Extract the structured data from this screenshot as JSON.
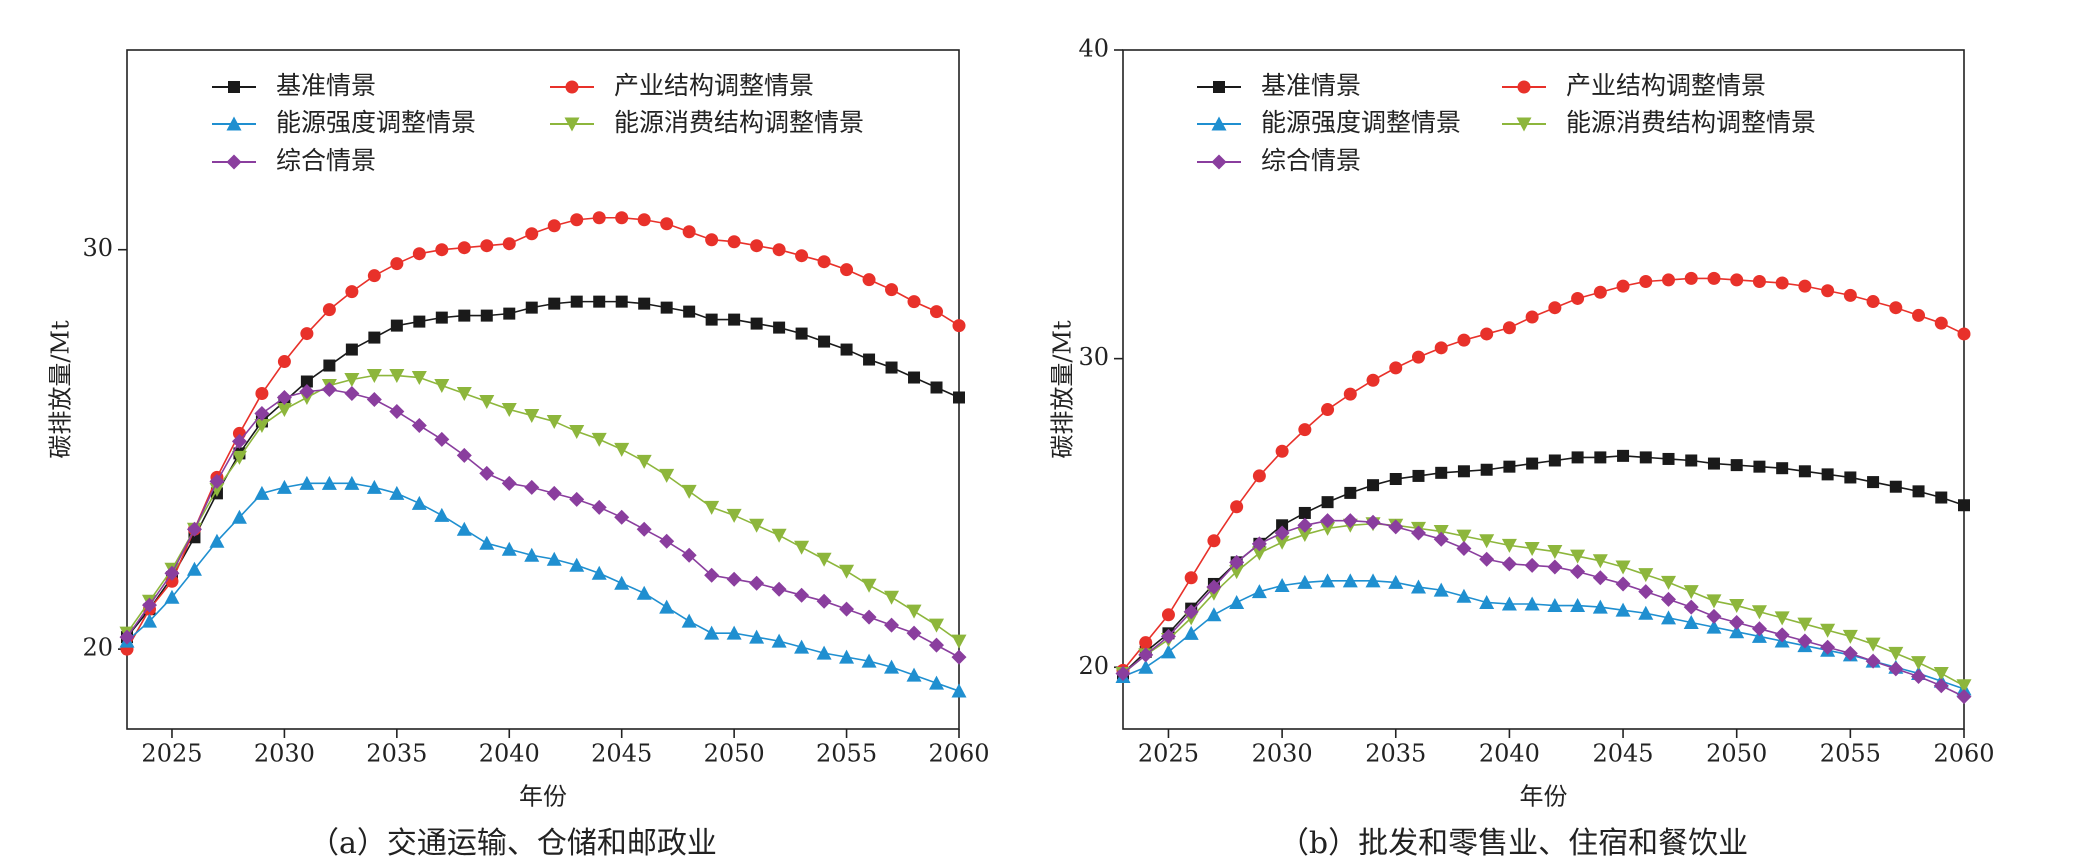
{
  "chart_data": [
    {
      "type": "line",
      "caption": "（a）交通运输、仓储和邮政业",
      "xlabel": "年份",
      "ylabel": "碳排放量/Mt",
      "x": [
        2023,
        2024,
        2025,
        2026,
        2027,
        2028,
        2029,
        2030,
        2031,
        2032,
        2033,
        2034,
        2035,
        2036,
        2037,
        2038,
        2039,
        2040,
        2041,
        2042,
        2043,
        2044,
        2045,
        2046,
        2047,
        2048,
        2049,
        2050,
        2051,
        2052,
        2053,
        2054,
        2055,
        2056,
        2057,
        2058,
        2059,
        2060
      ],
      "xlim": [
        2023,
        2060
      ],
      "xticks": [
        2025,
        2030,
        2035,
        2040,
        2045,
        2050,
        2055,
        2060
      ],
      "ylim": [
        18,
        35
      ],
      "yticks": [
        20,
        30
      ],
      "series": [
        {
          "name": "基准情景",
          "color": "#1a1a1a",
          "marker": "square",
          "values": [
            20.3,
            21.0,
            21.8,
            22.8,
            23.9,
            24.9,
            25.7,
            26.2,
            26.7,
            27.1,
            27.5,
            27.8,
            28.1,
            28.2,
            28.3,
            28.35,
            28.35,
            28.4,
            28.55,
            28.65,
            28.7,
            28.7,
            28.7,
            28.65,
            28.55,
            28.45,
            28.25,
            28.25,
            28.15,
            28.05,
            27.9,
            27.7,
            27.5,
            27.25,
            27.05,
            26.8,
            26.55,
            26.3
          ]
        },
        {
          "name": "产业结构调整情景",
          "color": "#e8312a",
          "marker": "circle",
          "values": [
            20.0,
            21.0,
            21.7,
            23.0,
            24.3,
            25.4,
            26.4,
            27.2,
            27.9,
            28.5,
            28.95,
            29.35,
            29.65,
            29.9,
            30.0,
            30.05,
            30.1,
            30.15,
            30.4,
            30.6,
            30.75,
            30.8,
            30.8,
            30.75,
            30.65,
            30.45,
            30.25,
            30.2,
            30.1,
            30.0,
            29.85,
            29.7,
            29.5,
            29.25,
            29.0,
            28.7,
            28.45,
            28.1
          ]
        },
        {
          "name": "能源强度调整情景",
          "color": "#1f8fd0",
          "marker": "triangle-up",
          "values": [
            20.2,
            20.7,
            21.3,
            22.0,
            22.7,
            23.3,
            23.9,
            24.05,
            24.15,
            24.15,
            24.15,
            24.05,
            23.9,
            23.65,
            23.35,
            23.0,
            22.65,
            22.5,
            22.35,
            22.25,
            22.1,
            21.9,
            21.65,
            21.4,
            21.05,
            20.7,
            20.4,
            20.4,
            20.3,
            20.2,
            20.05,
            19.9,
            19.8,
            19.7,
            19.55,
            19.35,
            19.15,
            18.95
          ]
        },
        {
          "name": "能源消费结构调整情景",
          "color": "#8db63c",
          "marker": "triangle-down",
          "values": [
            20.4,
            21.2,
            22.0,
            23.0,
            24.0,
            24.8,
            25.6,
            26.0,
            26.3,
            26.6,
            26.75,
            26.85,
            26.85,
            26.8,
            26.6,
            26.4,
            26.2,
            26.0,
            25.85,
            25.7,
            25.45,
            25.25,
            25.0,
            24.7,
            24.35,
            23.95,
            23.55,
            23.35,
            23.1,
            22.85,
            22.55,
            22.25,
            21.95,
            21.6,
            21.3,
            20.95,
            20.6,
            20.2
          ]
        },
        {
          "name": "综合情景",
          "color": "#8a3e9e",
          "marker": "diamond",
          "values": [
            20.3,
            21.1,
            21.9,
            23.0,
            24.2,
            25.2,
            25.9,
            26.3,
            26.45,
            26.5,
            26.4,
            26.25,
            25.95,
            25.6,
            25.25,
            24.85,
            24.4,
            24.15,
            24.05,
            23.9,
            23.75,
            23.55,
            23.3,
            23.0,
            22.7,
            22.35,
            21.85,
            21.75,
            21.65,
            21.5,
            21.35,
            21.2,
            21.0,
            20.8,
            20.6,
            20.4,
            20.1,
            19.8
          ]
        }
      ]
    },
    {
      "type": "line",
      "caption": "（b）批发和零售业、住宿和餐饮业",
      "xlabel": "年份",
      "ylabel": "碳排放量/Mt",
      "x": [
        2023,
        2024,
        2025,
        2026,
        2027,
        2028,
        2029,
        2030,
        2031,
        2032,
        2033,
        2034,
        2035,
        2036,
        2037,
        2038,
        2039,
        2040,
        2041,
        2042,
        2043,
        2044,
        2045,
        2046,
        2047,
        2048,
        2049,
        2050,
        2051,
        2052,
        2053,
        2054,
        2055,
        2056,
        2057,
        2058,
        2059,
        2060
      ],
      "xlim": [
        2023,
        2060
      ],
      "xticks": [
        2025,
        2030,
        2035,
        2040,
        2045,
        2050,
        2055,
        2060
      ],
      "ylim": [
        18,
        40
      ],
      "yticks": [
        20,
        30,
        40
      ],
      "series": [
        {
          "name": "基准情景",
          "color": "#1a1a1a",
          "marker": "square",
          "values": [
            19.8,
            20.5,
            21.1,
            21.9,
            22.7,
            23.4,
            24.0,
            24.6,
            25.0,
            25.35,
            25.65,
            25.9,
            26.1,
            26.2,
            26.3,
            26.35,
            26.4,
            26.5,
            26.6,
            26.7,
            26.8,
            26.8,
            26.85,
            26.8,
            26.75,
            26.7,
            26.6,
            26.55,
            26.5,
            26.45,
            26.35,
            26.25,
            26.15,
            26.0,
            25.85,
            25.7,
            25.5,
            25.25
          ]
        },
        {
          "name": "产业结构调整情景",
          "color": "#e8312a",
          "marker": "circle",
          "values": [
            19.9,
            20.8,
            21.7,
            22.9,
            24.1,
            25.2,
            26.2,
            27.0,
            27.7,
            28.35,
            28.85,
            29.3,
            29.7,
            30.05,
            30.35,
            30.6,
            30.8,
            31.0,
            31.35,
            31.65,
            31.95,
            32.15,
            32.35,
            32.5,
            32.55,
            32.6,
            32.6,
            32.55,
            32.5,
            32.45,
            32.35,
            32.2,
            32.05,
            31.85,
            31.65,
            31.4,
            31.15,
            30.8
          ]
        },
        {
          "name": "能源强度调整情景",
          "color": "#1f8fd0",
          "marker": "triangle-up",
          "values": [
            19.7,
            20.0,
            20.5,
            21.1,
            21.7,
            22.1,
            22.45,
            22.65,
            22.75,
            22.8,
            22.8,
            22.8,
            22.75,
            22.6,
            22.5,
            22.3,
            22.1,
            22.05,
            22.05,
            22.0,
            22.0,
            21.95,
            21.85,
            21.75,
            21.6,
            21.45,
            21.3,
            21.15,
            21.0,
            20.85,
            20.7,
            20.55,
            20.4,
            20.2,
            20.0,
            19.8,
            19.55,
            19.3
          ]
        },
        {
          "name": "能源消费结构调整情景",
          "color": "#8db63c",
          "marker": "triangle-down",
          "values": [
            19.8,
            20.4,
            20.9,
            21.6,
            22.4,
            23.1,
            23.7,
            24.05,
            24.3,
            24.5,
            24.6,
            24.65,
            24.6,
            24.5,
            24.4,
            24.25,
            24.1,
            23.95,
            23.85,
            23.75,
            23.6,
            23.45,
            23.25,
            23.0,
            22.75,
            22.45,
            22.15,
            22.0,
            21.8,
            21.6,
            21.4,
            21.2,
            21.0,
            20.75,
            20.45,
            20.15,
            19.8,
            19.4
          ]
        },
        {
          "name": "综合情景",
          "color": "#8a3e9e",
          "marker": "diamond",
          "values": [
            19.8,
            20.4,
            21.0,
            21.8,
            22.6,
            23.4,
            24.0,
            24.35,
            24.6,
            24.75,
            24.75,
            24.7,
            24.55,
            24.35,
            24.15,
            23.85,
            23.5,
            23.35,
            23.3,
            23.25,
            23.1,
            22.9,
            22.7,
            22.45,
            22.2,
            21.95,
            21.65,
            21.45,
            21.25,
            21.05,
            20.85,
            20.65,
            20.45,
            20.2,
            19.95,
            19.7,
            19.4,
            19.05
          ]
        }
      ]
    }
  ]
}
